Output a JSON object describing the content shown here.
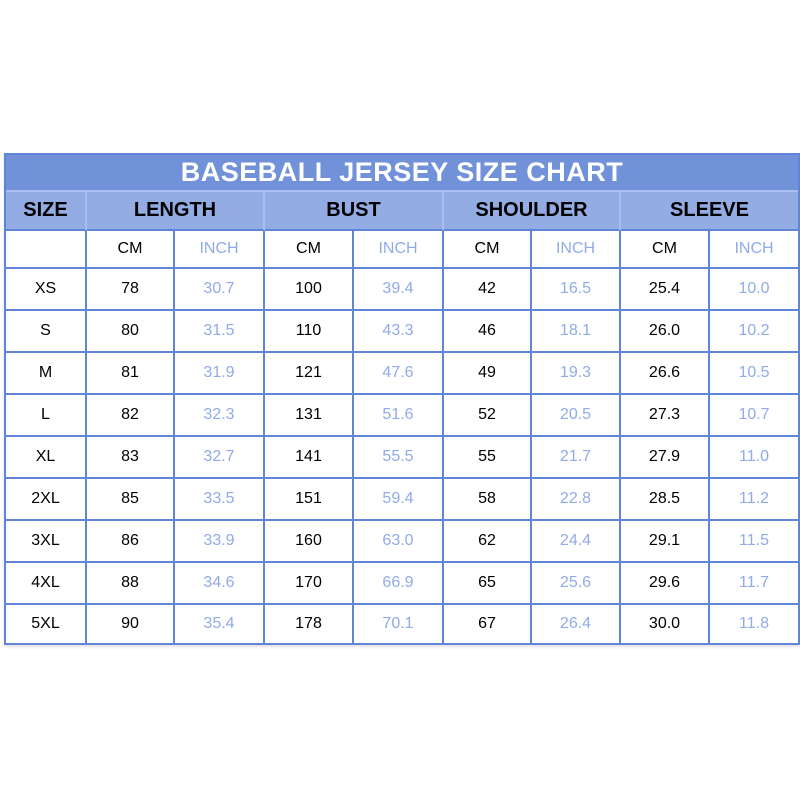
{
  "colors": {
    "title_bg": "#7191d8",
    "title_text": "#ffffff",
    "header_bg": "#93ace4",
    "header_separator": "#a9beee",
    "border": "#6284d8",
    "cm_text": "#000000",
    "inch_text": "#8fabe9",
    "page_bg": "#ffffff"
  },
  "chart_data": {
    "type": "table",
    "title": "BASEBALL JERSEY SIZE CHART",
    "column_groups": [
      "SIZE",
      "LENGTH",
      "BUST",
      "SHOULDER",
      "SLEEVE"
    ],
    "sub_columns": [
      "CM",
      "INCH"
    ],
    "rows": [
      [
        "XS",
        "78",
        "30.7",
        "100",
        "39.4",
        "42",
        "16.5",
        "25.4",
        "10.0"
      ],
      [
        "S",
        "80",
        "31.5",
        "110",
        "43.3",
        "46",
        "18.1",
        "26.0",
        "10.2"
      ],
      [
        "M",
        "81",
        "31.9",
        "121",
        "47.6",
        "49",
        "19.3",
        "26.6",
        "10.5"
      ],
      [
        "L",
        "82",
        "32.3",
        "131",
        "51.6",
        "52",
        "20.5",
        "27.3",
        "10.7"
      ],
      [
        "XL",
        "83",
        "32.7",
        "141",
        "55.5",
        "55",
        "21.7",
        "27.9",
        "11.0"
      ],
      [
        "2XL",
        "85",
        "33.5",
        "151",
        "59.4",
        "58",
        "22.8",
        "28.5",
        "11.2"
      ],
      [
        "3XL",
        "86",
        "33.9",
        "160",
        "63.0",
        "62",
        "24.4",
        "29.1",
        "11.5"
      ],
      [
        "4XL",
        "88",
        "34.6",
        "170",
        "66.9",
        "65",
        "25.6",
        "29.6",
        "11.7"
      ],
      [
        "5XL",
        "90",
        "35.4",
        "178",
        "70.1",
        "67",
        "26.4",
        "30.0",
        "11.8"
      ]
    ]
  }
}
